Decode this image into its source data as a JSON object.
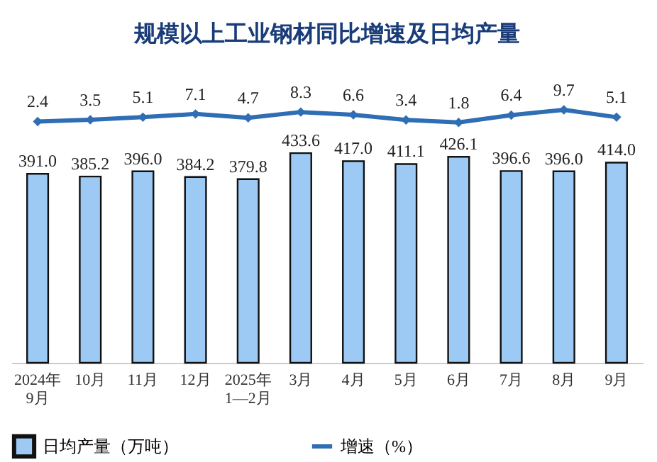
{
  "chart_data": [
    {
      "type": "bar",
      "categories": [
        "2024年\n9月",
        "10月",
        "11月",
        "12月",
        "2025年\n1—2月",
        "3月",
        "4月",
        "5月",
        "6月",
        "7月",
        "8月",
        "9月"
      ],
      "series": [
        {
          "name": "日均产量（万吨）",
          "type": "bar",
          "color": "#9dcaf5",
          "values": [
            391.0,
            385.2,
            396.0,
            384.2,
            379.8,
            433.6,
            417.0,
            411.1,
            426.1,
            396.6,
            396.0,
            414.0
          ],
          "value_labels": [
            "391.0",
            "385.2",
            "396.0",
            "384.2",
            "379.8",
            "433.6",
            "417.0",
            "411.1",
            "426.1",
            "396.6",
            "396.0",
            "414.0"
          ]
        }
      ],
      "tick_labels": "x",
      "legend": "bottom"
    },
    {
      "type": "line",
      "title": "规模以上工业钢材同比增速及日均产量",
      "categories": [
        null,
        null,
        null,
        null,
        null,
        null,
        null,
        null,
        null,
        null,
        null,
        null
      ],
      "series": [
        {
          "name": "增速（%）",
          "color": "#2f6db5",
          "values": [
            2.4,
            3.5,
            5.1,
            7.1,
            4.7,
            8.3,
            6.6,
            3.4,
            1.8,
            6.4,
            9.7,
            5.1
          ],
          "value_labels": [
            "2.4",
            "3.5",
            "5.1",
            "7.1",
            "4.7",
            "8.3",
            "6.6",
            "3.4",
            "1.8",
            "6.4",
            "9.7",
            "5.1"
          ]
        }
      ],
      "tick_labels": false,
      "legend": "bottom",
      "marker": "diamond"
    }
  ]
}
